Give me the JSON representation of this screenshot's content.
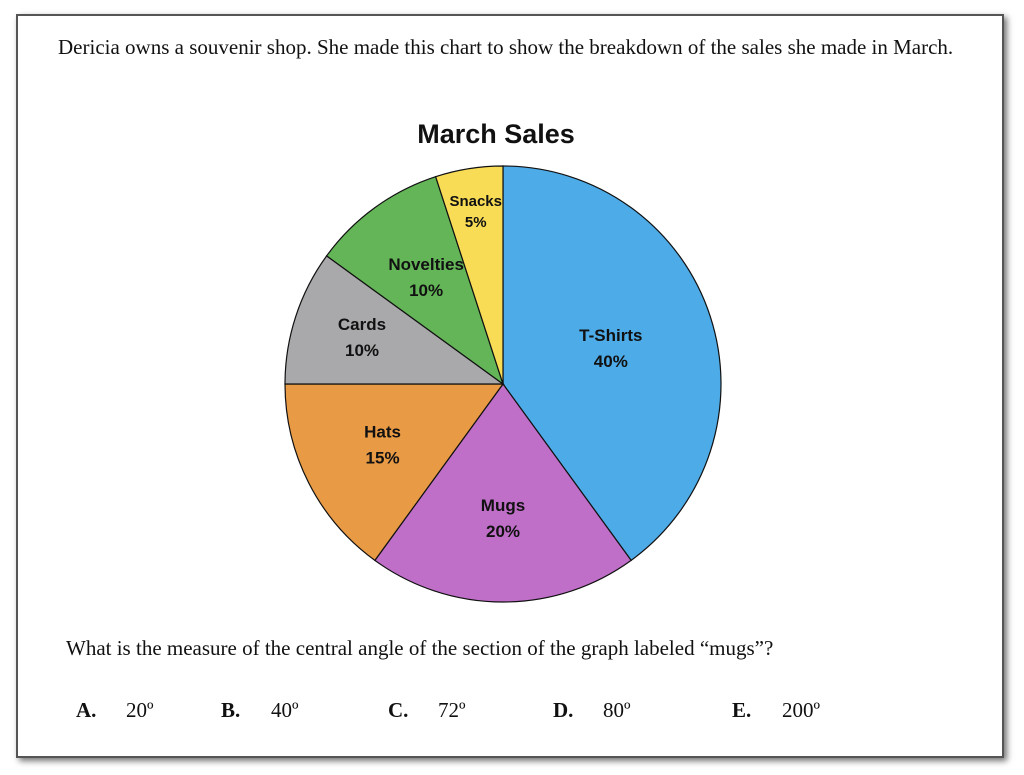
{
  "prompt": "Dericia owns a souvenir shop. She made this chart to show the breakdown of the sales she made in March.",
  "question": "What is the measure of the central angle of the section of the graph labeled “mugs”?",
  "choices": [
    {
      "letter": "A.",
      "text": "20º"
    },
    {
      "letter": "B.",
      "text": "40º"
    },
    {
      "letter": "C.",
      "text": "72º"
    },
    {
      "letter": "D.",
      "text": "80º"
    },
    {
      "letter": "E.",
      "text": "200º"
    }
  ],
  "chart_data": {
    "type": "pie",
    "title": "March Sales",
    "slices": [
      {
        "name": "T-Shirts",
        "value": 40,
        "label": "40%",
        "color": "#4DABE8"
      },
      {
        "name": "Mugs",
        "value": 20,
        "label": "20%",
        "color": "#BF6FC8"
      },
      {
        "name": "Hats",
        "value": 15,
        "label": "15%",
        "color": "#E89A45"
      },
      {
        "name": "Cards",
        "value": 10,
        "label": "10%",
        "color": "#A9A9AC"
      },
      {
        "name": "Novelties",
        "value": 10,
        "label": "10%",
        "color": "#63B557"
      },
      {
        "name": "Snacks",
        "value": 5,
        "label": "5%",
        "color": "#F9DC56"
      }
    ]
  }
}
